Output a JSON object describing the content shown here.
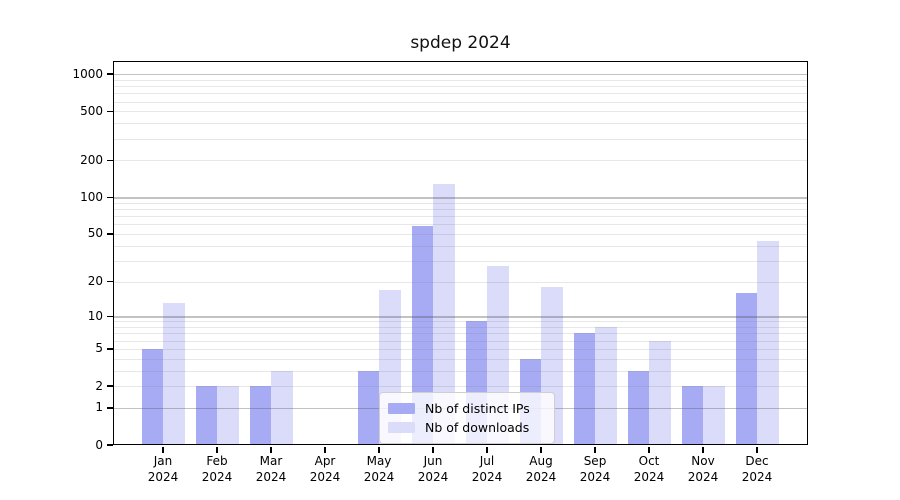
{
  "chart_data": {
    "type": "bar",
    "title": "spdep 2024",
    "categories": [
      "Jan 2024",
      "Feb 2024",
      "Mar 2024",
      "Apr 2024",
      "May 2024",
      "Jun 2024",
      "Jul 2024",
      "Aug 2024",
      "Sep 2024",
      "Oct 2024",
      "Nov 2024",
      "Dec 2024"
    ],
    "series": [
      {
        "name": "Nb of distinct IPs",
        "color": "#a6abf4",
        "values": [
          5,
          2,
          2,
          0,
          3,
          58,
          9,
          4,
          7,
          3,
          2,
          16
        ]
      },
      {
        "name": "Nb of downloads",
        "color": "#dadcf9",
        "values": [
          13,
          2,
          3,
          0,
          17,
          128,
          27,
          18,
          8,
          6,
          2,
          44
        ]
      }
    ],
    "yscale": "log1p",
    "y_ticks": [
      0,
      1,
      2,
      5,
      10,
      20,
      50,
      100,
      200,
      500,
      1000
    ],
    "ylim": [
      0,
      1280
    ],
    "grid": true,
    "legend_position": "inside-bottom-center",
    "colors": {
      "major_grid": "rgba(80,80,80,0.35)",
      "minor_grid": "rgba(120,120,120,0.18)",
      "axis": "#000000"
    }
  }
}
